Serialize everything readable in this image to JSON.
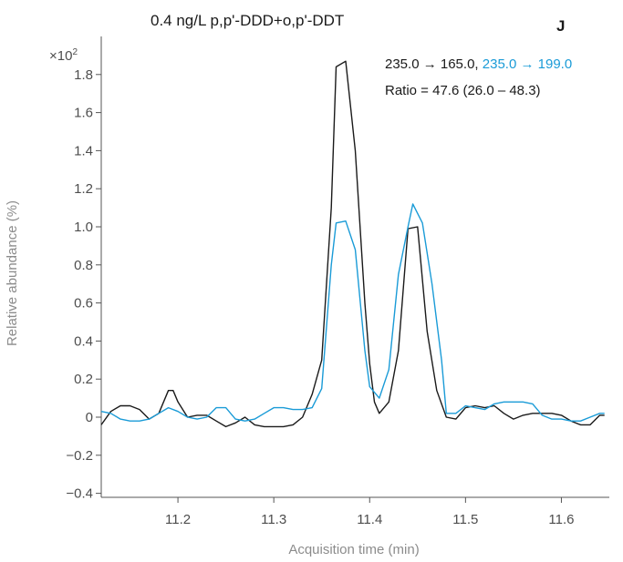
{
  "chart_data": {
    "type": "line",
    "title": "0.4 ng/L p,p'-DDD+o,p'-DDT",
    "panel_label": "J",
    "xlabel": "Acquisition time (min)",
    "ylabel": "Relative abundance (%)",
    "y_multiplier": "×10",
    "y_multiplier_exp": "2",
    "xlim": [
      11.12,
      11.65
    ],
    "ylim": [
      -0.4,
      1.95
    ],
    "x_ticks": [
      11.2,
      11.3,
      11.4,
      11.5,
      11.6
    ],
    "x_tick_labels": [
      "11.2",
      "11.3",
      "11.4",
      "11.5",
      "11.6"
    ],
    "y_ticks": [
      -0.4,
      -0.2,
      0,
      0.2,
      0.4,
      0.6,
      0.8,
      1.0,
      1.2,
      1.4,
      1.6,
      1.8
    ],
    "y_tick_labels": [
      "−0.4",
      "−0.2",
      "0",
      "0.2",
      "0.4",
      "0.6",
      "0.8",
      "1.0",
      "1.2",
      "1.4",
      "1.6",
      "1.8"
    ],
    "grid": false,
    "legend": {
      "transition_1": "235.0 → 165.0",
      "separator": ", ",
      "transition_2": "235.0 → 199.0",
      "ratio_text": "Ratio = 47.6 (26.0 – 48.3)"
    },
    "series": [
      {
        "color": "#1a1a1a",
        "points": [
          [
            11.12,
            -0.04
          ],
          [
            11.13,
            0.03
          ],
          [
            11.14,
            0.06
          ],
          [
            11.15,
            0.06
          ],
          [
            11.16,
            0.04
          ],
          [
            11.17,
            -0.01
          ],
          [
            11.18,
            0.02
          ],
          [
            11.19,
            0.14
          ],
          [
            11.195,
            0.14
          ],
          [
            11.2,
            0.08
          ],
          [
            11.21,
            0.0
          ],
          [
            11.22,
            0.01
          ],
          [
            11.23,
            0.01
          ],
          [
            11.24,
            -0.02
          ],
          [
            11.25,
            -0.05
          ],
          [
            11.26,
            -0.03
          ],
          [
            11.27,
            0.0
          ],
          [
            11.28,
            -0.04
          ],
          [
            11.29,
            -0.05
          ],
          [
            11.3,
            -0.05
          ],
          [
            11.31,
            -0.05
          ],
          [
            11.32,
            -0.04
          ],
          [
            11.33,
            0.0
          ],
          [
            11.34,
            0.12
          ],
          [
            11.35,
            0.3
          ],
          [
            11.36,
            1.1
          ],
          [
            11.365,
            1.84
          ],
          [
            11.375,
            1.87
          ],
          [
            11.385,
            1.4
          ],
          [
            11.395,
            0.6
          ],
          [
            11.4,
            0.28
          ],
          [
            11.405,
            0.08
          ],
          [
            11.41,
            0.02
          ],
          [
            11.42,
            0.08
          ],
          [
            11.43,
            0.35
          ],
          [
            11.44,
            0.99
          ],
          [
            11.45,
            1.0
          ],
          [
            11.46,
            0.45
          ],
          [
            11.47,
            0.14
          ],
          [
            11.48,
            0.0
          ],
          [
            11.49,
            -0.01
          ],
          [
            11.5,
            0.05
          ],
          [
            11.51,
            0.06
          ],
          [
            11.52,
            0.05
          ],
          [
            11.53,
            0.06
          ],
          [
            11.54,
            0.02
          ],
          [
            11.55,
            -0.01
          ],
          [
            11.56,
            0.01
          ],
          [
            11.57,
            0.02
          ],
          [
            11.58,
            0.02
          ],
          [
            11.59,
            0.02
          ],
          [
            11.6,
            0.01
          ],
          [
            11.61,
            -0.02
          ],
          [
            11.62,
            -0.04
          ],
          [
            11.63,
            -0.04
          ],
          [
            11.64,
            0.01
          ],
          [
            11.645,
            0.01
          ]
        ]
      },
      {
        "color": "#1a9bd7",
        "points": [
          [
            11.12,
            0.03
          ],
          [
            11.13,
            0.02
          ],
          [
            11.14,
            -0.01
          ],
          [
            11.15,
            -0.02
          ],
          [
            11.16,
            -0.02
          ],
          [
            11.17,
            -0.01
          ],
          [
            11.18,
            0.02
          ],
          [
            11.19,
            0.05
          ],
          [
            11.2,
            0.03
          ],
          [
            11.21,
            0.0
          ],
          [
            11.22,
            -0.01
          ],
          [
            11.23,
            0.0
          ],
          [
            11.24,
            0.05
          ],
          [
            11.25,
            0.05
          ],
          [
            11.26,
            -0.01
          ],
          [
            11.27,
            -0.02
          ],
          [
            11.28,
            -0.01
          ],
          [
            11.29,
            0.02
          ],
          [
            11.3,
            0.05
          ],
          [
            11.31,
            0.05
          ],
          [
            11.32,
            0.04
          ],
          [
            11.33,
            0.04
          ],
          [
            11.34,
            0.05
          ],
          [
            11.35,
            0.15
          ],
          [
            11.36,
            0.8
          ],
          [
            11.365,
            1.02
          ],
          [
            11.375,
            1.03
          ],
          [
            11.385,
            0.88
          ],
          [
            11.395,
            0.35
          ],
          [
            11.4,
            0.16
          ],
          [
            11.41,
            0.1
          ],
          [
            11.42,
            0.25
          ],
          [
            11.43,
            0.75
          ],
          [
            11.44,
            1.0
          ],
          [
            11.445,
            1.12
          ],
          [
            11.455,
            1.02
          ],
          [
            11.465,
            0.7
          ],
          [
            11.475,
            0.3
          ],
          [
            11.48,
            0.02
          ],
          [
            11.49,
            0.02
          ],
          [
            11.5,
            0.06
          ],
          [
            11.51,
            0.05
          ],
          [
            11.52,
            0.04
          ],
          [
            11.53,
            0.07
          ],
          [
            11.54,
            0.08
          ],
          [
            11.55,
            0.08
          ],
          [
            11.56,
            0.08
          ],
          [
            11.57,
            0.07
          ],
          [
            11.58,
            0.01
          ],
          [
            11.59,
            -0.01
          ],
          [
            11.6,
            -0.01
          ],
          [
            11.61,
            -0.02
          ],
          [
            11.62,
            -0.02
          ],
          [
            11.63,
            0.0
          ],
          [
            11.64,
            0.02
          ],
          [
            11.645,
            0.02
          ]
        ]
      }
    ]
  }
}
